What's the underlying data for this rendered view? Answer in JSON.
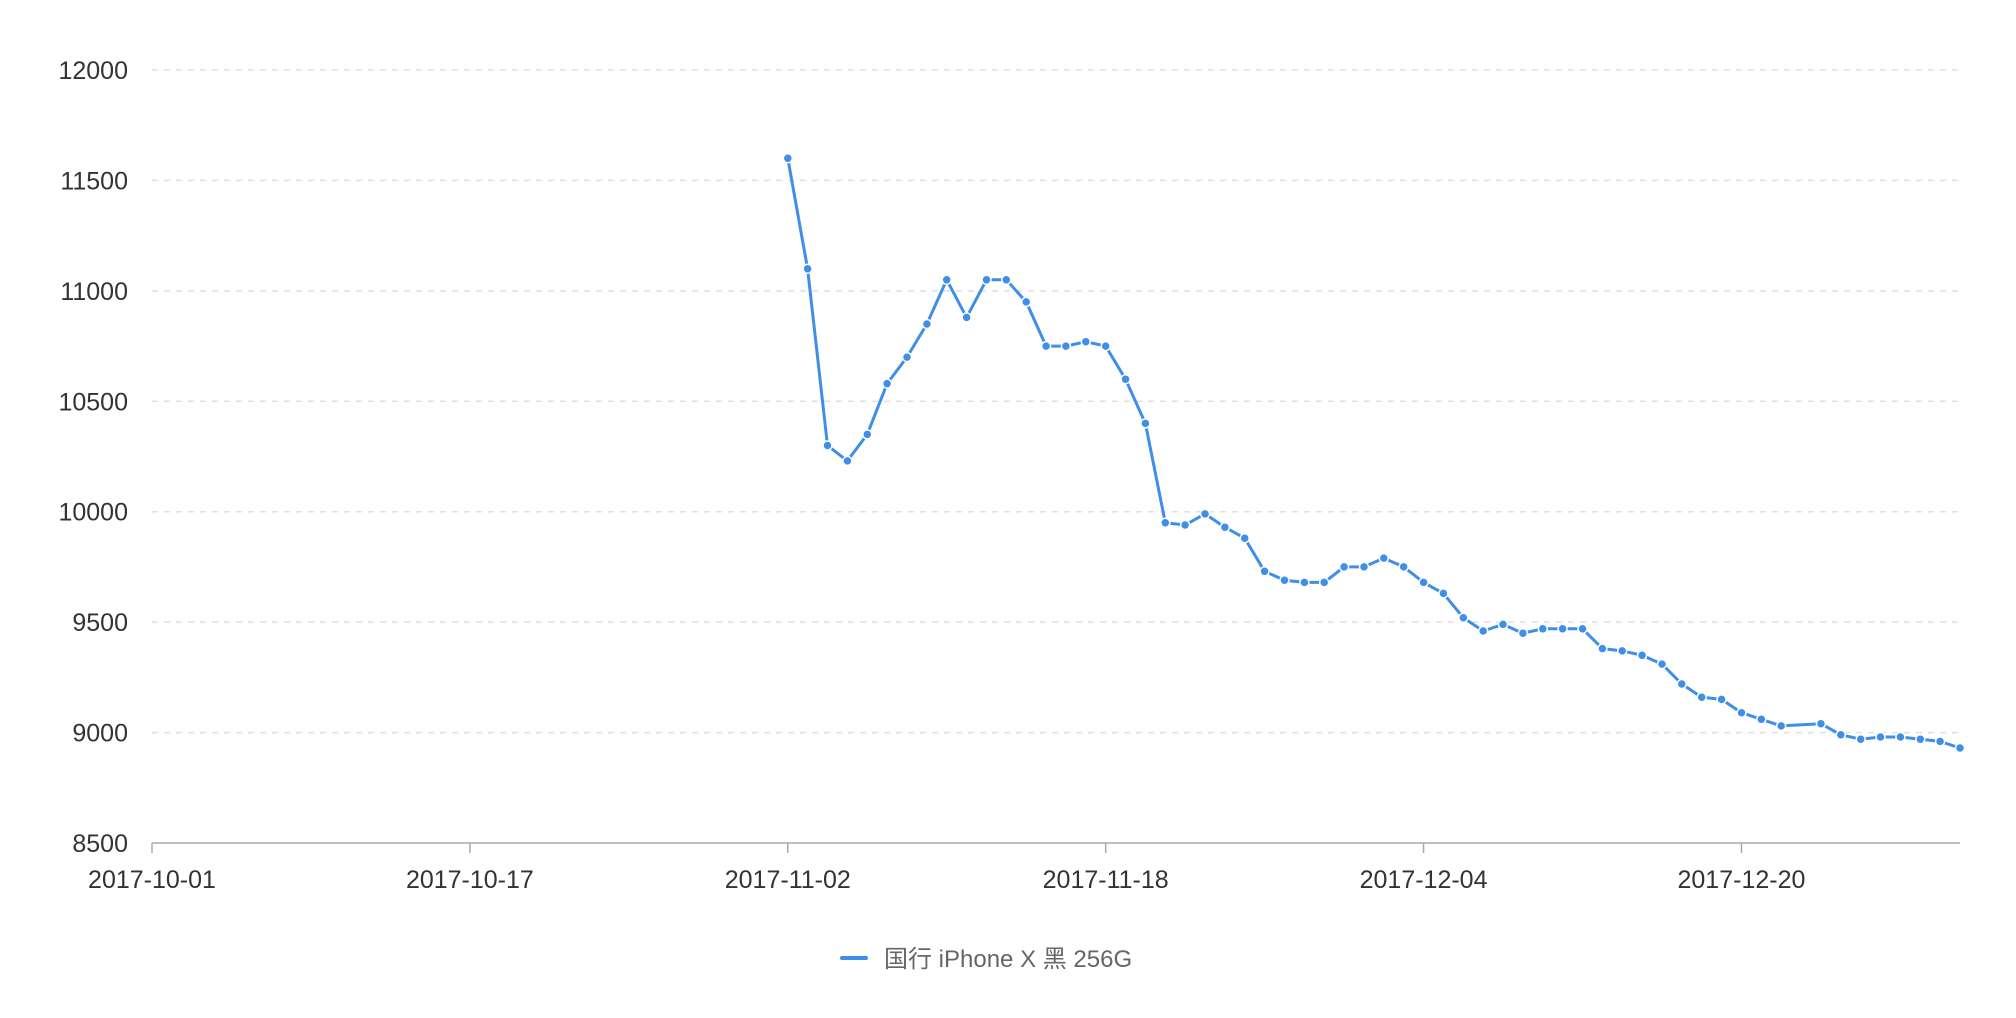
{
  "chart_data": {
    "type": "line",
    "title": "",
    "xlabel": "",
    "ylabel": "",
    "x_axis": {
      "type": "date",
      "min": "2017-10-01",
      "max": "2017-12-31",
      "tick_labels": [
        "2017-10-01",
        "2017-10-17",
        "2017-11-02",
        "2017-11-18",
        "2017-12-04",
        "2017-12-20"
      ]
    },
    "y_axis": {
      "min": 8500,
      "max": 12000,
      "tick_labels": [
        "12000",
        "11500",
        "11000",
        "10500",
        "10000",
        "9500",
        "9000",
        "8500"
      ]
    },
    "grid": "horizontal-dashed",
    "legend_position": "bottom-center",
    "series": [
      {
        "name": "国行 iPhone X 黑 256G",
        "color": "#3f8fe8",
        "x": [
          "2017-11-02",
          "2017-11-03",
          "2017-11-04",
          "2017-11-05",
          "2017-11-06",
          "2017-11-07",
          "2017-11-08",
          "2017-11-09",
          "2017-11-10",
          "2017-11-11",
          "2017-11-12",
          "2017-11-13",
          "2017-11-14",
          "2017-11-15",
          "2017-11-16",
          "2017-11-17",
          "2017-11-18",
          "2017-11-19",
          "2017-11-20",
          "2017-11-21",
          "2017-11-22",
          "2017-11-23",
          "2017-11-24",
          "2017-11-25",
          "2017-11-26",
          "2017-11-27",
          "2017-11-28",
          "2017-11-29",
          "2017-11-30",
          "2017-12-01",
          "2017-12-02",
          "2017-12-03",
          "2017-12-04",
          "2017-12-05",
          "2017-12-06",
          "2017-12-07",
          "2017-12-08",
          "2017-12-09",
          "2017-12-10",
          "2017-12-11",
          "2017-12-12",
          "2017-12-13",
          "2017-12-14",
          "2017-12-15",
          "2017-12-16",
          "2017-12-17",
          "2017-12-18",
          "2017-12-19",
          "2017-12-20",
          "2017-12-21",
          "2017-12-22",
          "2017-12-24",
          "2017-12-25",
          "2017-12-26",
          "2017-12-27",
          "2017-12-28",
          "2017-12-29",
          "2017-12-30",
          "2017-12-31"
        ],
        "values": [
          11600,
          11100,
          10300,
          10230,
          10350,
          10580,
          10700,
          10850,
          11050,
          10880,
          11050,
          11050,
          10950,
          10750,
          10750,
          10770,
          10750,
          10600,
          10400,
          9950,
          9940,
          9990,
          9930,
          9880,
          9730,
          9690,
          9680,
          9680,
          9750,
          9750,
          9790,
          9750,
          9680,
          9630,
          9520,
          9460,
          9490,
          9450,
          9470,
          9470,
          9470,
          9380,
          9370,
          9350,
          9310,
          9220,
          9160,
          9150,
          9090,
          9060,
          9030,
          9040,
          8990,
          8970,
          8980,
          8980,
          8970,
          8960,
          8930
        ]
      }
    ]
  }
}
